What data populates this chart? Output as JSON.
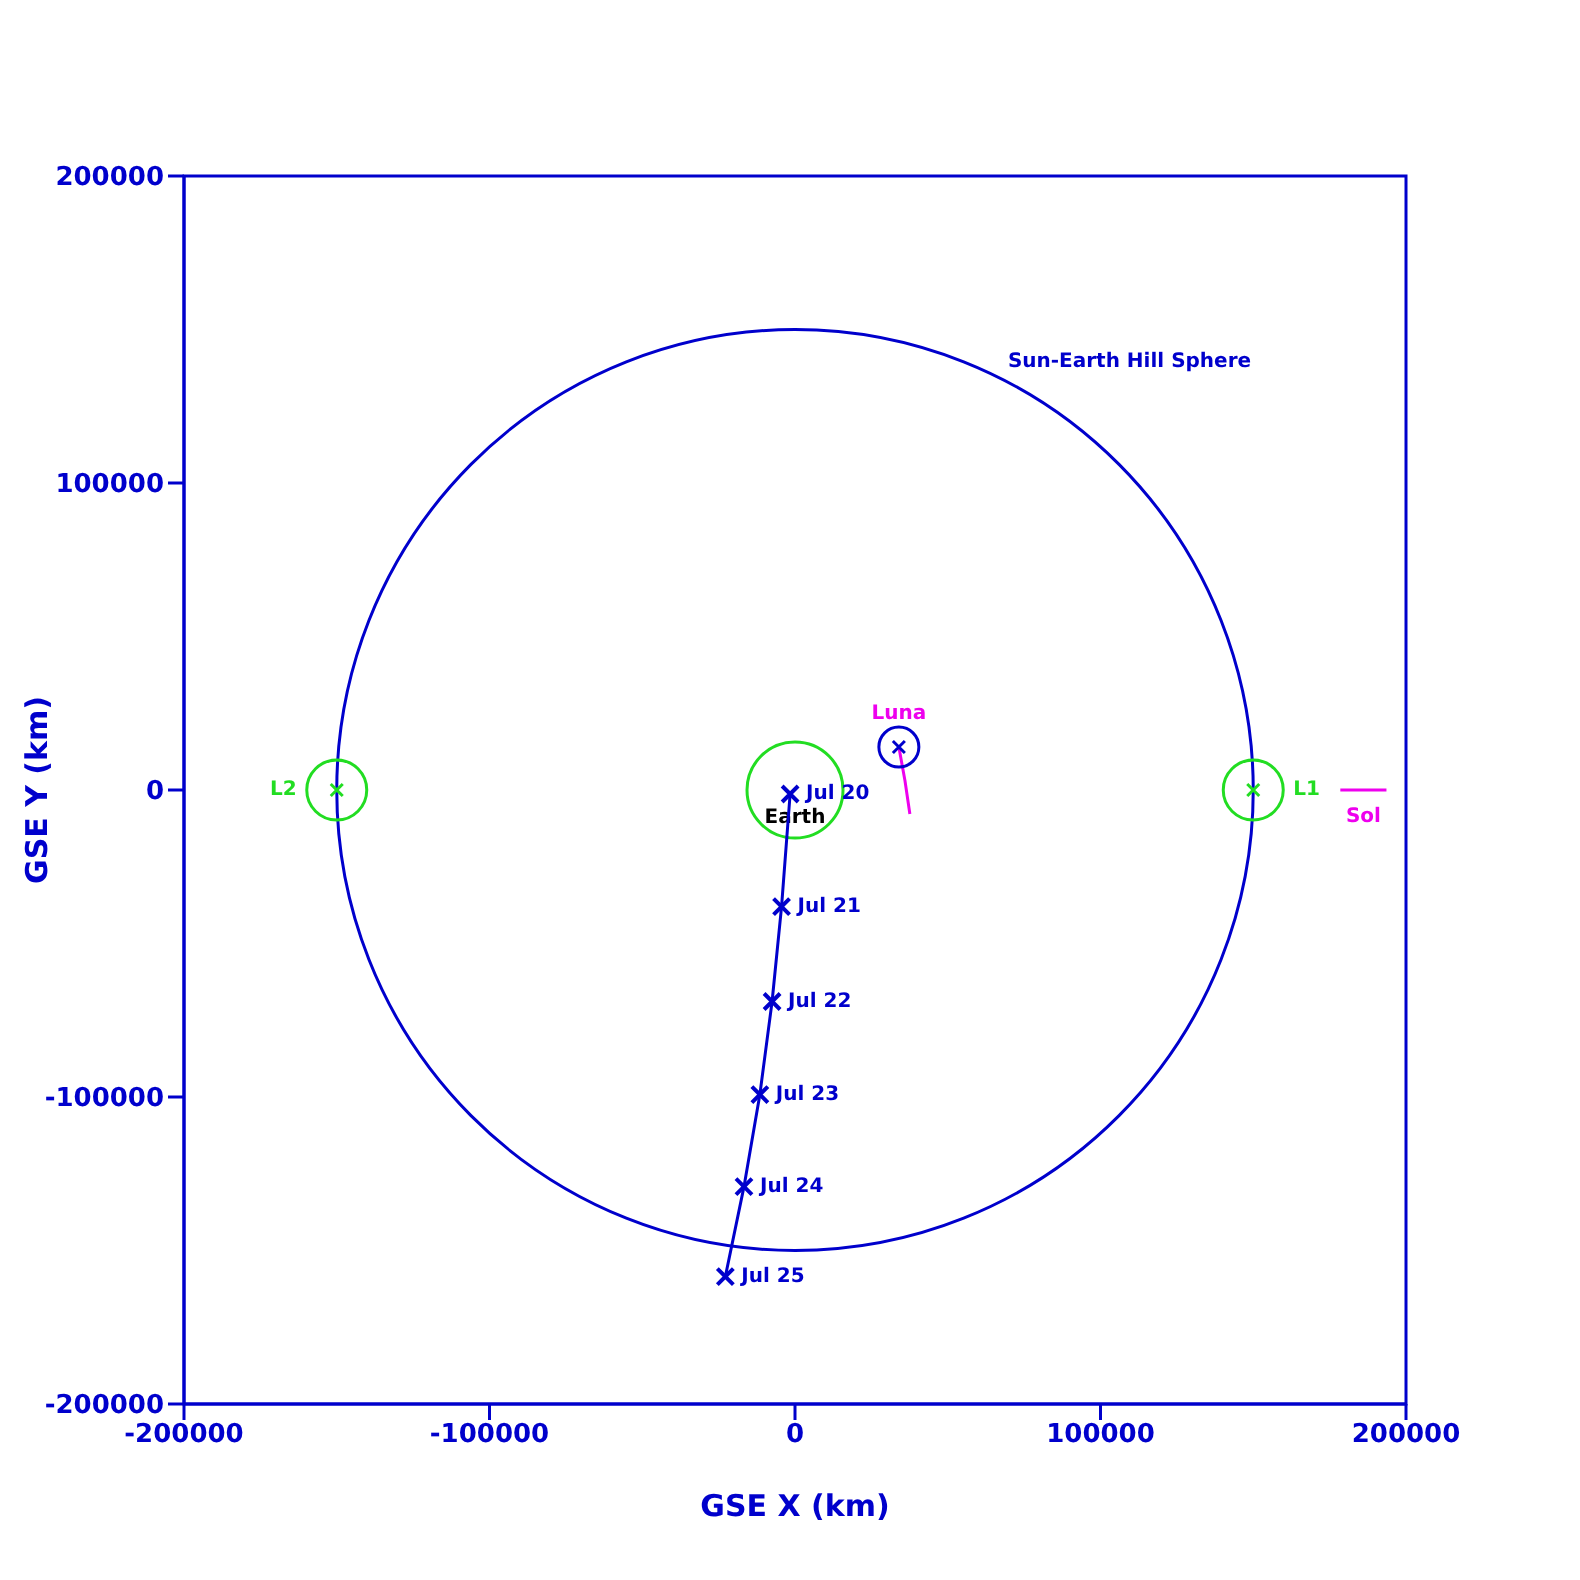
{
  "chart_data": {
    "type": "line",
    "xlabel": "GSE X (km)",
    "ylabel": "GSE Y (km)",
    "xlim": [
      -200000,
      200000
    ],
    "ylim": [
      -200000,
      200000
    ],
    "xticks": [
      -200000,
      -100000,
      0,
      100000,
      200000
    ],
    "yticks": [
      -200000,
      -100000,
      0,
      100000,
      200000
    ],
    "grid": false,
    "legend": false,
    "marker": "none",
    "line_style": "solid",
    "series": [
      {
        "type": "scatter",
        "name": "L2",
        "marker": "circle",
        "color": "#22dd22",
        "x": [
          -150000
        ],
        "values": [
          0
        ]
      },
      {
        "type": "scatter",
        "name": "L1",
        "marker": "circle",
        "color": "#22dd22",
        "x": [
          150000
        ],
        "values": [
          0
        ]
      },
      {
        "type": "scatter",
        "marker": "circle",
        "color": "#0000cc",
        "x": [
          34000
        ],
        "values": [
          14000
        ]
      },
      {
        "name": "Luna",
        "color": "#ee00ee",
        "x": [
          34000,
          36000,
          37600
        ],
        "values": [
          14000,
          3000,
          -7800
        ]
      },
      {
        "name": "Sol",
        "color": "#ee00ee",
        "x": [
          178500,
          193600
        ],
        "values": [
          0,
          0
        ]
      },
      {
        "color": "#0000cc",
        "marker": "cross",
        "x": [
          -22800,
          -16700,
          -11500,
          -7500,
          -4400,
          -1600
        ],
        "values": [
          -158500,
          -129200,
          -99200,
          -68900,
          -38000,
          -1300
        ],
        "value_labels": [
          "Jul 25",
          "Jul 24",
          "Jul 23",
          "Jul 22",
          "Jul 21",
          "Jul 20"
        ]
      }
    ],
    "annotations": [
      "Sun-Earth Hill Sphere",
      "Earth"
    ]
  }
}
